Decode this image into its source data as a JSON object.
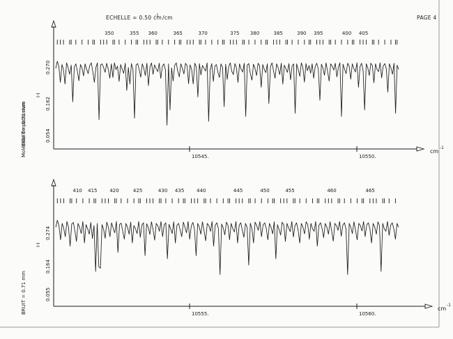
{
  "header": {
    "scale_label": "ECHELLE = 0.50 cm",
    "scale_exponent": "-1",
    "scale_suffix": "/cm",
    "page_label": "PAGE 4"
  },
  "colors": {
    "ink": "#1a1a1a",
    "paper": "#fbfbfa",
    "frame": "#9a9a9a"
  },
  "chart_data": [
    {
      "type": "line",
      "side_label_molecule": "Molécule de potassium",
      "side_label_noise": "BRUIT = 0.71 mm",
      "y_axis_label": "I-I",
      "y_ticks": [
        "0.054",
        "0.162",
        "0.270"
      ],
      "x_unit": "cm",
      "x_unit_exponent": "-1",
      "x_ticks": [
        {
          "x": 10545,
          "label": "10545."
        },
        {
          "x": 10550,
          "label": "10550."
        }
      ],
      "xlim": [
        10541.0,
        10551.25
      ],
      "ylim": [
        0.0,
        0.33
      ],
      "annotations": [
        {
          "x": 10542.6,
          "label": "350"
        },
        {
          "x": 10543.35,
          "label": "355"
        },
        {
          "x": 10543.9,
          "label": "360"
        },
        {
          "x": 10544.65,
          "label": "365"
        },
        {
          "x": 10545.4,
          "label": "370"
        },
        {
          "x": 10546.35,
          "label": "375"
        },
        {
          "x": 10546.95,
          "label": "380"
        },
        {
          "x": 10547.65,
          "label": "385"
        },
        {
          "x": 10548.35,
          "label": "390"
        },
        {
          "x": 10548.85,
          "label": "395"
        },
        {
          "x": 10549.7,
          "label": "400"
        },
        {
          "x": 10550.2,
          "label": "405"
        }
      ],
      "series": [
        {
          "values": [
            0.248,
            0.27,
            0.255,
            0.205,
            0.26,
            0.245,
            0.2,
            0.265,
            0.25,
            0.23,
            0.258,
            0.145,
            0.252,
            0.262,
            0.24,
            0.21,
            0.26,
            0.249,
            0.225,
            0.262,
            0.245,
            0.232,
            0.257,
            0.265,
            0.238,
            0.205,
            0.251,
            0.265,
            0.09,
            0.259,
            0.262,
            0.25,
            0.236,
            0.264,
            0.245,
            0.218,
            0.262,
            0.22,
            0.265,
            0.244,
            0.255,
            0.208,
            0.26,
            0.246,
            0.233,
            0.264,
            0.18,
            0.251,
            0.2,
            0.263,
            0.245,
            0.095,
            0.258,
            0.263,
            0.245,
            0.221,
            0.262,
            0.249,
            0.226,
            0.264,
            0.195,
            0.252,
            0.265,
            0.23,
            0.259,
            0.247,
            0.238,
            0.264,
            0.217,
            0.254,
            0.262,
            0.243,
            0.073,
            0.262,
            0.12,
            0.25,
            0.209,
            0.257,
            0.265,
            0.239,
            0.222,
            0.262,
            0.248,
            0.231,
            0.264,
            0.256,
            0.201,
            0.259,
            0.245,
            0.2,
            0.264,
            0.252,
            0.16,
            0.263,
            0.228,
            0.257,
            0.248,
            0.24,
            0.265,
            0.085,
            0.244,
            0.263,
            0.208,
            0.255,
            0.26,
            0.236,
            0.22,
            0.262,
            0.25,
            0.13,
            0.261,
            0.214,
            0.254,
            0.265,
            0.239,
            0.229,
            0.263,
            0.249,
            0.205,
            0.262,
            0.246,
            0.237,
            0.264,
            0.1,
            0.258,
            0.263,
            0.232,
            0.212,
            0.261,
            0.248,
            0.226,
            0.264,
            0.256,
            0.19,
            0.26,
            0.245,
            0.235,
            0.262,
            0.14,
            0.254,
            0.265,
            0.24,
            0.218,
            0.262,
            0.25,
            0.229,
            0.264,
            0.2,
            0.258,
            0.247,
            0.236,
            0.263,
            0.213,
            0.255,
            0.262,
            0.11,
            0.262,
            0.245,
            0.224,
            0.265,
            0.25,
            0.206,
            0.263,
            0.241,
            0.257,
            0.233,
            0.262,
            0.218,
            0.254,
            0.264,
            0.245,
            0.15,
            0.261,
            0.249,
            0.227,
            0.265,
            0.238,
            0.209,
            0.262,
            0.255,
            0.243,
            0.264,
            0.222,
            0.252,
            0.265,
            0.1,
            0.261,
            0.246,
            0.232,
            0.264,
            0.255,
            0.215,
            0.262,
            0.248,
            0.237,
            0.265,
            0.19,
            0.253,
            0.264,
            0.242,
            0.12,
            0.262,
            0.25,
            0.226,
            0.264,
            0.257,
            0.204,
            0.262,
            0.245,
            0.238,
            0.265,
            0.219,
            0.255,
            0.263,
            0.247,
            0.175,
            0.262,
            0.25,
            0.23,
            0.264,
            0.11,
            0.258,
            0.245
          ]
        }
      ]
    },
    {
      "type": "line",
      "side_label_noise": "BRUIT = 0.71 mm",
      "y_axis_label": "I-I",
      "y_ticks": [
        "0.055",
        "0.164",
        "0.274"
      ],
      "x_unit": "cm",
      "x_unit_exponent": "-1",
      "x_ticks": [
        {
          "x": 10555,
          "label": "10555."
        },
        {
          "x": 10560,
          "label": "10560."
        }
      ],
      "xlim": [
        10551.0,
        10561.25
      ],
      "ylim": [
        0.0,
        0.33
      ],
      "annotations": [
        {
          "x": 10551.65,
          "label": "410"
        },
        {
          "x": 10552.1,
          "label": "415"
        },
        {
          "x": 10552.75,
          "label": "420"
        },
        {
          "x": 10553.45,
          "label": "425"
        },
        {
          "x": 10554.2,
          "label": "430"
        },
        {
          "x": 10554.7,
          "label": "435"
        },
        {
          "x": 10555.35,
          "label": "440"
        },
        {
          "x": 10556.45,
          "label": "445"
        },
        {
          "x": 10557.25,
          "label": "450"
        },
        {
          "x": 10558.0,
          "label": "455"
        },
        {
          "x": 10559.25,
          "label": "460"
        },
        {
          "x": 10560.4,
          "label": "465"
        }
      ],
      "series": [
        {
          "values": [
            0.25,
            0.272,
            0.255,
            0.21,
            0.262,
            0.247,
            0.22,
            0.268,
            0.25,
            0.19,
            0.26,
            0.265,
            0.238,
            0.205,
            0.262,
            0.249,
            0.23,
            0.268,
            0.2,
            0.258,
            0.245,
            0.228,
            0.265,
            0.214,
            0.255,
            0.11,
            0.262,
            0.125,
            0.12,
            0.258,
            0.243,
            0.215,
            0.266,
            0.25,
            0.22,
            0.264,
            0.247,
            0.232,
            0.268,
            0.17,
            0.258,
            0.263,
            0.238,
            0.212,
            0.262,
            0.25,
            0.228,
            0.266,
            0.2,
            0.255,
            0.245,
            0.23,
            0.268,
            0.218,
            0.257,
            0.264,
            0.16,
            0.261,
            0.25,
            0.227,
            0.267,
            0.243,
            0.209,
            0.262,
            0.254,
            0.237,
            0.268,
            0.22,
            0.257,
            0.264,
            0.15,
            0.259,
            0.245,
            0.23,
            0.267,
            0.2,
            0.256,
            0.262,
            0.241,
            0.22,
            0.266,
            0.249,
            0.232,
            0.268,
            0.212,
            0.254,
            0.265,
            0.243,
            0.16,
            0.262,
            0.25,
            0.228,
            0.267,
            0.239,
            0.207,
            0.262,
            0.255,
            0.237,
            0.268,
            0.19,
            0.256,
            0.264,
            0.245,
            0.1,
            0.26,
            0.248,
            0.226,
            0.266,
            0.256,
            0.21,
            0.262,
            0.245,
            0.235,
            0.268,
            0.2,
            0.256,
            0.264,
            0.24,
            0.218,
            0.262,
            0.25,
            0.13,
            0.263,
            0.245,
            0.2,
            0.266,
            0.255,
            0.24,
            0.268,
            0.22,
            0.257,
            0.264,
            0.245,
            0.21,
            0.262,
            0.25,
            0.229,
            0.267,
            0.15,
            0.258,
            0.243,
            0.225,
            0.266,
            0.257,
            0.205,
            0.262,
            0.248,
            0.236,
            0.268,
            0.219,
            0.255,
            0.264,
            0.24,
            0.2,
            0.262,
            0.25,
            0.229,
            0.267,
            0.258,
            0.212,
            0.262,
            0.245,
            0.237,
            0.268,
            0.19,
            0.256,
            0.264,
            0.245,
            0.217,
            0.262,
            0.25,
            0.228,
            0.267,
            0.238,
            0.206,
            0.262,
            0.255,
            0.24,
            0.268,
            0.221,
            0.256,
            0.264,
            0.244,
            0.1,
            0.262,
            0.25,
            0.23,
            0.267,
            0.24,
            0.21,
            0.262,
            0.255,
            0.238,
            0.268,
            0.22,
            0.257,
            0.264,
            0.245,
            0.2,
            0.262,
            0.25,
            0.228,
            0.267,
            0.255,
            0.11,
            0.262,
            0.245,
            0.237,
            0.268,
            0.224,
            0.256,
            0.264,
            0.245,
            0.212,
            0.262,
            0.25
          ]
        }
      ]
    }
  ]
}
